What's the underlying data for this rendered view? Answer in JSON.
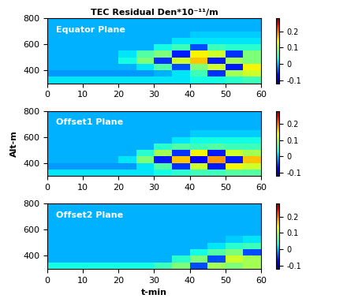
{
  "chart_data": [
    {
      "type": "heatmap",
      "title": "TEC Residual Den*10⁻¹¹/m",
      "annotation": "Equator Plane",
      "xlim": [
        0,
        60
      ],
      "ylim": [
        300,
        800
      ],
      "xticks": [
        0,
        10,
        20,
        30,
        40,
        50,
        60
      ],
      "yticks": [
        400,
        600,
        800
      ],
      "x_edges": [
        0,
        5,
        10,
        15,
        20,
        25,
        30,
        35,
        40,
        45,
        50,
        55,
        60
      ],
      "y_edges": [
        300,
        350,
        400,
        450,
        500,
        550,
        600,
        650,
        700,
        750,
        800
      ],
      "cells": [
        [
          0.02,
          0.02,
          0.02,
          0.02,
          0.02,
          0.02,
          0.02,
          0.02,
          0.03,
          0.03,
          0.04,
          0.05
        ],
        [
          -0.01,
          -0.01,
          -0.01,
          -0.01,
          -0.01,
          -0.01,
          0.0,
          0.02,
          0.05,
          -0.05,
          0.1,
          0.12
        ],
        [
          0.0,
          0.0,
          0.0,
          0.0,
          0.0,
          0.02,
          0.06,
          -0.04,
          0.08,
          0.12,
          -0.06,
          0.14
        ],
        [
          0.0,
          0.0,
          0.0,
          0.0,
          0.03,
          0.08,
          -0.05,
          0.12,
          0.16,
          -0.06,
          0.1,
          0.08
        ],
        [
          0.0,
          0.0,
          0.0,
          0.0,
          0.02,
          0.06,
          0.08,
          -0.06,
          0.14,
          0.12,
          -0.05,
          0.08
        ],
        [
          0.0,
          0.0,
          0.0,
          0.0,
          0.0,
          0.0,
          0.03,
          0.05,
          -0.04,
          0.05,
          0.04,
          0.04
        ],
        [
          0.0,
          0.0,
          0.0,
          0.0,
          0.0,
          0.0,
          0.0,
          0.02,
          0.02,
          0.02,
          0.02,
          0.02
        ],
        [
          0.0,
          0.0,
          0.0,
          0.0,
          0.0,
          0.0,
          0.0,
          0.0,
          0.01,
          0.01,
          0.01,
          0.01
        ],
        [
          0.0,
          0.0,
          0.0,
          0.0,
          0.0,
          0.0,
          0.0,
          0.0,
          0.0,
          0.0,
          0.0,
          0.0
        ],
        [
          0.0,
          0.0,
          0.0,
          0.0,
          0.0,
          0.0,
          0.0,
          0.0,
          0.0,
          0.0,
          0.0,
          0.0
        ]
      ],
      "colorbar": {
        "range": [
          -0.12,
          0.28
        ],
        "ticks": [
          -0.1,
          0,
          0.1,
          0.2
        ]
      }
    },
    {
      "type": "heatmap",
      "annotation": "Offset1 Plane",
      "y_label": "Alt-m",
      "xlim": [
        0,
        60
      ],
      "ylim": [
        300,
        800
      ],
      "xticks": [
        0,
        10,
        20,
        30,
        40,
        50,
        60
      ],
      "yticks": [
        400,
        600,
        800
      ],
      "x_edges": [
        0,
        5,
        10,
        15,
        20,
        25,
        30,
        35,
        40,
        45,
        50,
        55,
        60
      ],
      "y_edges": [
        300,
        350,
        400,
        450,
        500,
        550,
        600,
        650,
        700,
        750,
        800
      ],
      "cells": [
        [
          0.02,
          0.02,
          0.02,
          0.02,
          0.02,
          0.02,
          0.03,
          0.04,
          0.05,
          0.05,
          0.06,
          0.06
        ],
        [
          -0.01,
          -0.01,
          -0.01,
          -0.01,
          -0.01,
          0.02,
          0.06,
          -0.05,
          0.12,
          -0.06,
          0.14,
          0.12
        ],
        [
          0.0,
          0.0,
          0.0,
          0.0,
          0.02,
          0.08,
          -0.06,
          0.16,
          -0.07,
          0.18,
          -0.06,
          0.16
        ],
        [
          0.0,
          0.0,
          0.0,
          0.0,
          0.0,
          0.04,
          0.1,
          -0.05,
          0.14,
          -0.06,
          0.12,
          0.1
        ],
        [
          0.0,
          0.0,
          0.0,
          0.0,
          0.0,
          0.0,
          0.04,
          0.06,
          0.05,
          0.06,
          0.05,
          0.05
        ],
        [
          0.0,
          0.0,
          0.0,
          0.0,
          0.0,
          0.0,
          0.0,
          0.02,
          0.03,
          0.03,
          0.03,
          0.03
        ],
        [
          0.0,
          0.0,
          0.0,
          0.0,
          0.0,
          0.0,
          0.0,
          0.0,
          0.01,
          0.01,
          0.01,
          0.01
        ],
        [
          0.0,
          0.0,
          0.0,
          0.0,
          0.0,
          0.0,
          0.0,
          0.0,
          0.0,
          0.0,
          0.0,
          0.0
        ],
        [
          0.0,
          0.0,
          0.0,
          0.0,
          0.0,
          0.0,
          0.0,
          0.0,
          0.0,
          0.0,
          0.0,
          0.0
        ],
        [
          0.0,
          0.0,
          0.0,
          0.0,
          0.0,
          0.0,
          0.0,
          0.0,
          0.0,
          0.0,
          0.0,
          0.0
        ]
      ],
      "colorbar": {
        "range": [
          -0.12,
          0.28
        ],
        "ticks": [
          -0.1,
          0,
          0.1,
          0.2
        ]
      }
    },
    {
      "type": "heatmap",
      "annotation": "Offset2 Plane",
      "x_label": "t-min",
      "xlim": [
        0,
        60
      ],
      "ylim": [
        300,
        800
      ],
      "xticks": [
        0,
        10,
        20,
        30,
        40,
        50,
        60
      ],
      "yticks": [
        400,
        600,
        800
      ],
      "x_edges": [
        0,
        5,
        10,
        15,
        20,
        25,
        30,
        35,
        40,
        45,
        50,
        55,
        60
      ],
      "y_edges": [
        300,
        350,
        400,
        450,
        500,
        550,
        600,
        650,
        700,
        750,
        800
      ],
      "cells": [
        [
          0.03,
          0.03,
          0.03,
          0.03,
          0.03,
          0.03,
          0.05,
          0.08,
          -0.04,
          0.1,
          0.08,
          0.1
        ],
        [
          0.0,
          0.0,
          0.0,
          0.0,
          0.0,
          0.0,
          0.0,
          0.04,
          0.08,
          -0.04,
          0.12,
          0.1
        ],
        [
          0.0,
          0.0,
          0.0,
          0.0,
          0.0,
          0.0,
          0.0,
          0.0,
          0.03,
          0.06,
          0.08,
          -0.04
        ],
        [
          0.0,
          0.0,
          0.0,
          0.0,
          0.0,
          0.0,
          0.0,
          0.0,
          0.0,
          0.02,
          0.04,
          0.05
        ],
        [
          0.0,
          0.0,
          0.0,
          0.0,
          0.0,
          0.0,
          0.0,
          0.0,
          0.0,
          0.0,
          0.01,
          0.02
        ],
        [
          0.0,
          0.0,
          0.0,
          0.0,
          0.0,
          0.0,
          0.0,
          0.0,
          0.0,
          0.0,
          0.0,
          0.0
        ],
        [
          0.0,
          0.0,
          0.0,
          0.0,
          0.0,
          0.0,
          0.0,
          0.0,
          0.0,
          0.0,
          0.0,
          0.0
        ],
        [
          0.0,
          0.0,
          0.0,
          0.0,
          0.0,
          0.0,
          0.0,
          0.0,
          0.0,
          0.0,
          0.0,
          0.0
        ],
        [
          0.0,
          0.0,
          0.0,
          0.0,
          0.0,
          0.0,
          0.0,
          0.0,
          0.0,
          0.0,
          0.0,
          0.0
        ],
        [
          0.0,
          0.0,
          0.0,
          0.0,
          0.0,
          0.0,
          0.0,
          0.0,
          0.0,
          0.0,
          0.0,
          0.0
        ]
      ],
      "colorbar": {
        "range": [
          -0.12,
          0.28
        ],
        "ticks": [
          -0.1,
          0,
          0.1,
          0.2
        ]
      }
    }
  ]
}
